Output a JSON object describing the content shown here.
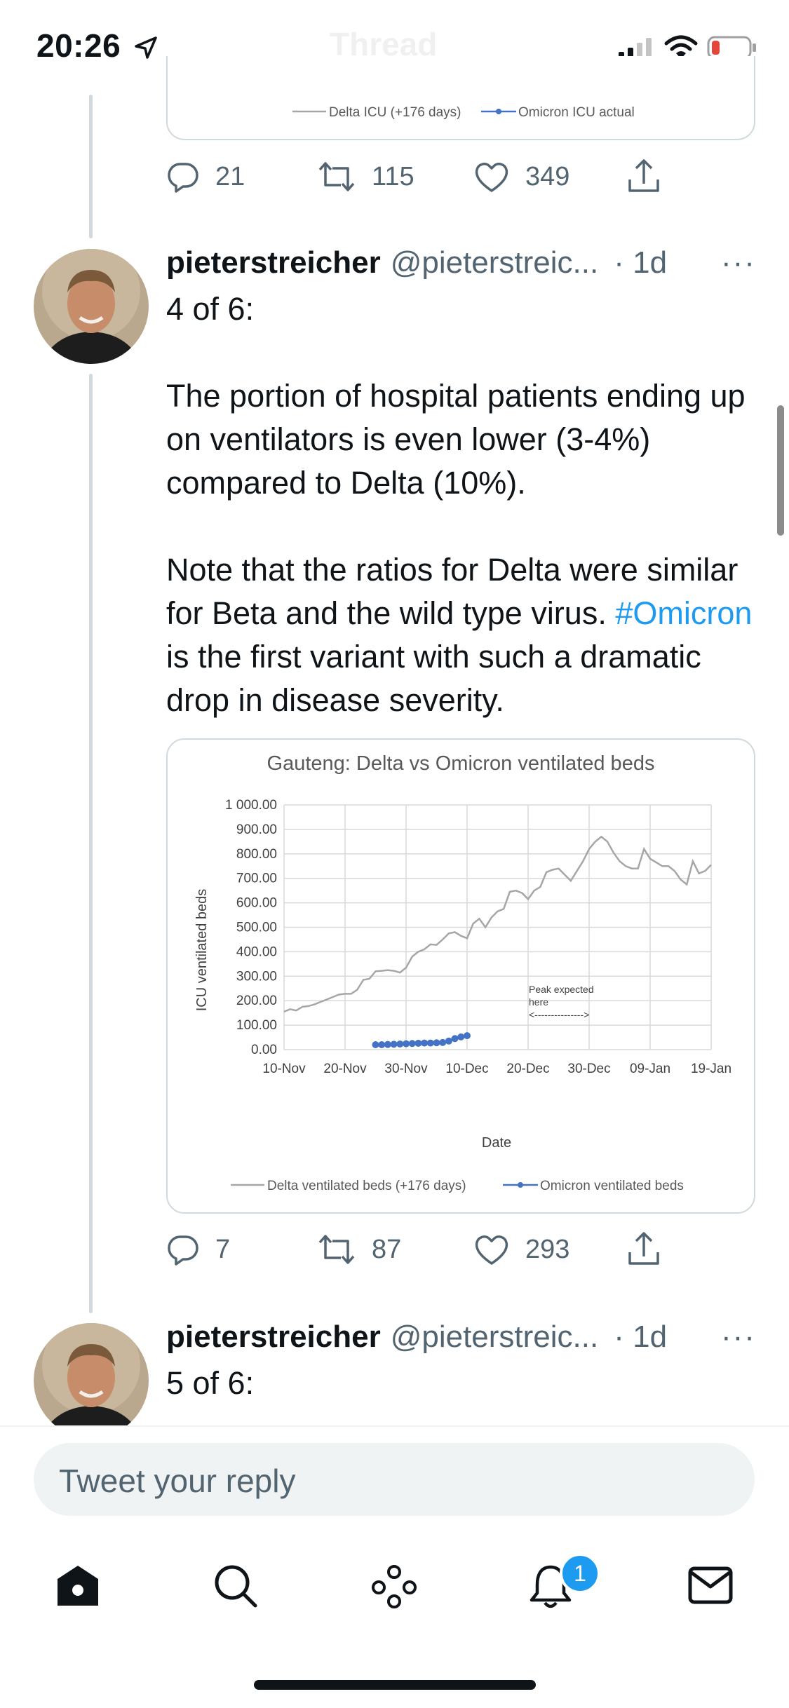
{
  "status_bar": {
    "time": "20:26",
    "location_icon": "location-arrow-icon",
    "signal_icon": "cellular-signal-icon",
    "wifi_icon": "wifi-icon",
    "battery_icon": "battery-low-icon"
  },
  "header": {
    "title": "Thread"
  },
  "previous_tweet": {
    "legend": {
      "delta": "Delta ICU (+176 days)",
      "omicron": "Omicron ICU actual"
    },
    "actions": {
      "replies": "21",
      "retweets": "115",
      "likes": "349"
    }
  },
  "tweet_4": {
    "name": "pieterstreicher",
    "handle": "@pieterstreic...",
    "time": "· 1d",
    "more": "···",
    "line1": "4 of 6:",
    "para1": "The portion of hospital patients ending up on ventilators is even lower (3-4%) compared to Delta (10%).",
    "para2_start": "Note that the ratios for Delta were similar for Beta and the wild type virus. ",
    "hashtag": "#Omicron",
    "para2_end": " is the first variant with such a dramatic drop in disease severity.",
    "actions": {
      "replies": "7",
      "retweets": "87",
      "likes": "293"
    }
  },
  "tweet_5": {
    "name": "pieterstreicher",
    "handle": "@pieterstreic...",
    "time": "· 1d",
    "more": "···",
    "line1": "5 of 6:"
  },
  "reply_box": {
    "placeholder": "Tweet your reply"
  },
  "tab_bar": {
    "items": [
      "home-icon",
      "search-icon",
      "spaces-icon",
      "notifications-icon",
      "messages-icon"
    ],
    "notification_count": "1"
  },
  "colors": {
    "accent": "#1d9bf0",
    "delta_line": "#a6a6a6",
    "omicron_line": "#4472c4"
  },
  "chart_data": {
    "type": "line",
    "title": "Gauteng: Delta vs Omicron ventilated beds",
    "xlabel": "Date",
    "ylabel": "ICU ventilated beds",
    "ylim": [
      0,
      1000
    ],
    "yticks": [
      "0.00",
      "100.00",
      "200.00",
      "300.00",
      "400.00",
      "500.00",
      "600.00",
      "700.00",
      "800.00",
      "900.00",
      "1 000.00"
    ],
    "xticks": [
      "10-Nov",
      "20-Nov",
      "30-Nov",
      "10-Dec",
      "20-Dec",
      "30-Dec",
      "09-Jan",
      "19-Jan"
    ],
    "x_start": "10-Nov",
    "x_end": "19-Jan",
    "grid": true,
    "legend_position": "bottom",
    "series": [
      {
        "name": "Delta ventilated beds (+176 days)",
        "x_day_offsets": [
          0,
          1,
          2,
          3,
          4,
          5,
          6,
          7,
          8,
          9,
          10,
          11,
          12,
          13,
          14,
          15,
          16,
          17,
          18,
          19,
          20,
          21,
          22,
          23,
          24,
          25,
          26,
          27,
          28,
          29,
          30,
          31,
          32,
          33,
          34,
          35,
          36,
          37,
          38,
          39,
          40,
          41,
          42,
          43,
          44,
          45,
          46,
          47,
          48,
          49,
          50,
          51,
          52,
          53,
          54,
          55,
          56,
          57,
          58,
          59,
          60,
          61,
          62,
          63,
          64,
          65,
          66,
          67,
          68,
          69,
          70
        ],
        "values": [
          155,
          165,
          160,
          175,
          178,
          185,
          195,
          205,
          215,
          225,
          228,
          228,
          245,
          285,
          290,
          320,
          322,
          325,
          322,
          315,
          335,
          380,
          400,
          410,
          430,
          428,
          450,
          475,
          480,
          465,
          455,
          515,
          535,
          500,
          540,
          565,
          575,
          645,
          650,
          640,
          615,
          650,
          665,
          725,
          735,
          740,
          715,
          690,
          730,
          770,
          820,
          850,
          870,
          850,
          805,
          770,
          750,
          740,
          740,
          820,
          780,
          765,
          750,
          750,
          730,
          695,
          675,
          770,
          720,
          730,
          755
        ],
        "style": "line"
      },
      {
        "name": "Omicron ventilated beds",
        "x_day_offsets": [
          15,
          16,
          17,
          18,
          19,
          20,
          21,
          22,
          23,
          24,
          25,
          26,
          27,
          28,
          29,
          30
        ],
        "values": [
          20,
          20,
          21,
          22,
          23,
          24,
          25,
          26,
          27,
          27,
          28,
          29,
          35,
          45,
          52,
          57
        ],
        "style": "line-markers"
      }
    ],
    "annotations": [
      "Peak expected",
      "here",
      "<--------------->"
    ]
  }
}
